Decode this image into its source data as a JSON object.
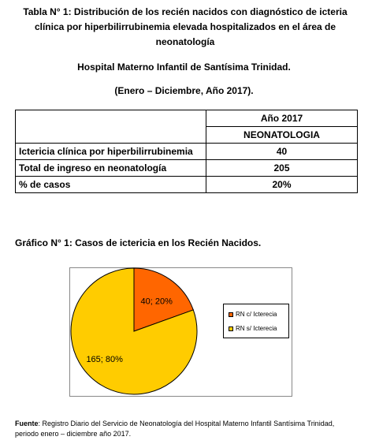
{
  "title": {
    "label": "Tabla N° 1:",
    "text": " Distribución de los recién nacidos con diagnóstico de icteria clínica por hiperbilirrubinemia elevada hospitalizados en el área de neonatología"
  },
  "hospital": "Hospital Materno Infantil de Santísima Trinidad.",
  "period": "(Enero – Diciembre, Año 2017).",
  "table": {
    "header_year": "Año 2017",
    "header_area": "NEONATOLOGIA",
    "rows": [
      {
        "label": "Ictericia clínica por hiperbilirrubinemia",
        "value": "40"
      },
      {
        "label": "Total de ingreso en neonatología",
        "value": "205"
      },
      {
        "label": "% de casos",
        "value": "20%"
      }
    ]
  },
  "chart_title": "Gráfico N° 1: Casos de ictericia en los Recién Nacidos.",
  "chart_data": {
    "type": "pie",
    "categories": [
      "RN c/ Icterecia",
      "RN s/ Icterecia"
    ],
    "values": [
      40,
      165
    ],
    "percentages": [
      20,
      80
    ],
    "data_labels": [
      "40; 20%",
      "165; 80%"
    ],
    "colors": [
      "#FF6600",
      "#FFCC00"
    ],
    "legend_position": "right"
  },
  "footer": {
    "label": "Fuente",
    "text": ": Registro Diario del Servicio de Neonatología del Hospital Materno Infantil Santísima Trinidad, periodo enero – diciembre año 2017."
  }
}
